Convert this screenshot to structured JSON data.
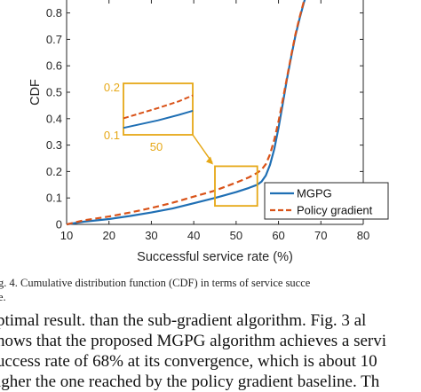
{
  "chart_data": {
    "type": "line",
    "xlabel": "Successful service rate (%)",
    "ylabel": "CDF",
    "xlim": [
      10,
      80
    ],
    "ylim": [
      0,
      1
    ],
    "xticks": [
      "10",
      "20",
      "30",
      "40",
      "50",
      "60",
      "70",
      "80"
    ],
    "yticks": [
      "0",
      "0.1",
      "0.2",
      "0.3",
      "0.4",
      "0.5",
      "0.6",
      "0.7",
      "0.8",
      "0.9"
    ],
    "legend_position": "bottom-right",
    "grid": false,
    "series": [
      {
        "name": "MGPG",
        "color": "#1f6fb4",
        "style": "solid",
        "x": [
          10,
          14,
          20,
          25,
          30,
          35,
          40,
          45,
          50,
          53,
          55,
          56,
          57,
          58,
          59,
          60,
          61,
          62,
          63,
          64,
          65,
          66,
          67,
          68,
          69,
          70
        ],
        "y": [
          0,
          0.01,
          0.02,
          0.032,
          0.045,
          0.06,
          0.08,
          0.1,
          0.122,
          0.138,
          0.15,
          0.162,
          0.185,
          0.225,
          0.285,
          0.365,
          0.455,
          0.55,
          0.635,
          0.715,
          0.78,
          0.84,
          0.89,
          0.935,
          0.97,
          1.0
        ]
      },
      {
        "name": "Policy gradient",
        "color": "#d95319",
        "style": "dashed",
        "x": [
          10,
          14,
          20,
          25,
          30,
          35,
          40,
          45,
          50,
          53,
          55,
          56,
          57,
          58,
          59,
          60,
          61,
          62,
          63,
          64,
          65,
          66,
          67,
          68,
          69,
          70
        ],
        "y": [
          0,
          0.015,
          0.03,
          0.045,
          0.062,
          0.082,
          0.105,
          0.128,
          0.158,
          0.178,
          0.195,
          0.207,
          0.228,
          0.265,
          0.32,
          0.39,
          0.47,
          0.555,
          0.64,
          0.72,
          0.785,
          0.845,
          0.895,
          0.94,
          0.975,
          1.0
        ]
      }
    ],
    "inset": {
      "xtick": "50",
      "yticks": [
        "0.2",
        "0.1"
      ],
      "x_range": [
        45,
        55
      ],
      "y_range": [
        0.07,
        0.22
      ],
      "color": "#e6a817"
    }
  },
  "caption": {
    "line1": "g. 4.   Cumulative distribution function (CDF) in terms of service succe",
    "line2": "e."
  },
  "body_text": [
    "ptimal result. than the sub-gradient algorithm. Fig. 3 al",
    "hows that the proposed MGPG algorithm achieves a servi",
    "uccess rate of 68% at its convergence, which is about 10",
    "igher the one reached by the policy gradient baseline. Th"
  ]
}
